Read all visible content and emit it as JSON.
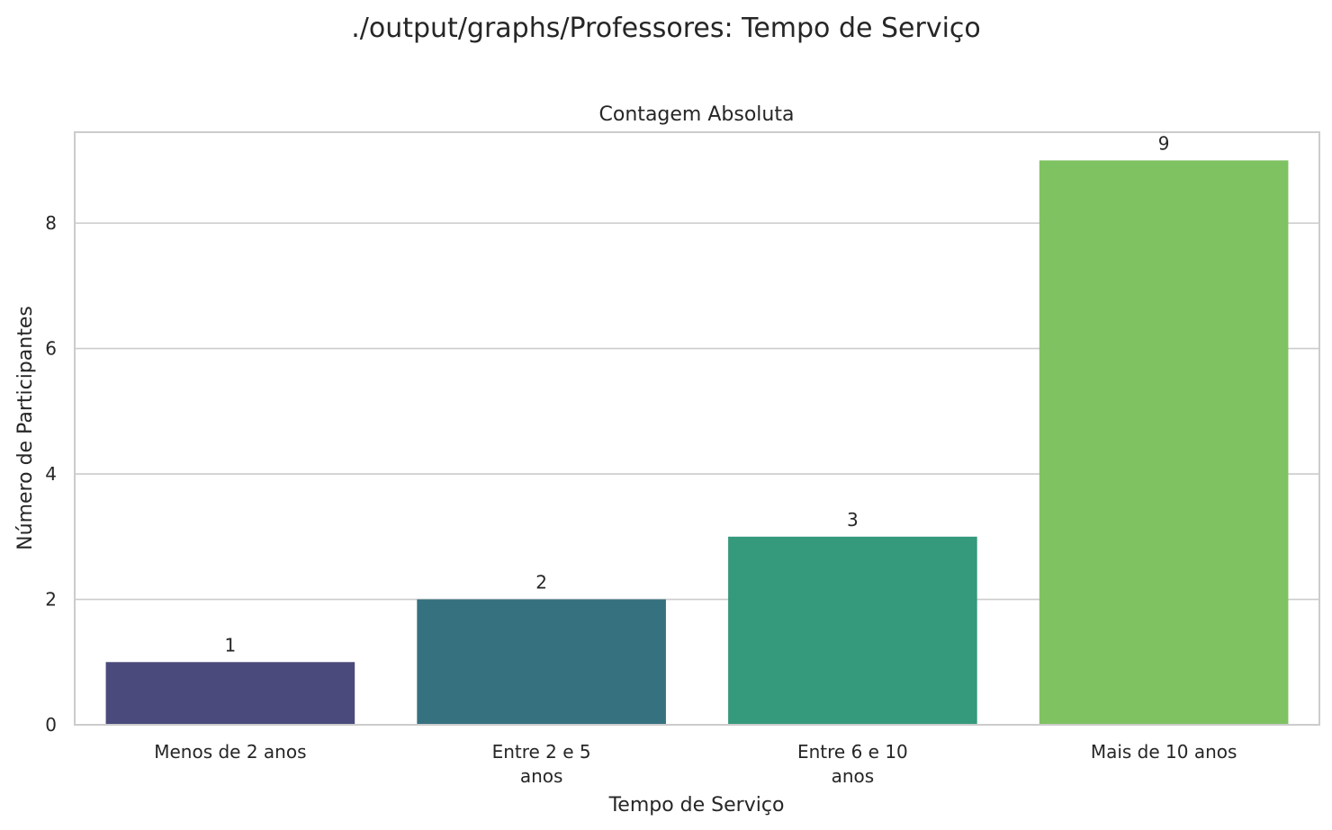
{
  "figure": {
    "suptitle": "./output/graphs/Professores: Tempo de Serviço"
  },
  "chart_data": {
    "type": "bar",
    "title": "Contagem Absoluta",
    "xlabel": "Tempo de Serviço",
    "ylabel": "Número de Participantes",
    "categories": [
      [
        "Menos de 2 anos"
      ],
      [
        "Entre 2 e 5",
        "anos"
      ],
      [
        "Entre 6 e 10",
        "anos"
      ],
      [
        "Mais de 10 anos"
      ]
    ],
    "values": [
      1,
      2,
      3,
      9
    ],
    "data_labels": [
      "1",
      "2",
      "3",
      "9"
    ],
    "colors": [
      "#4a4a7c",
      "#367180",
      "#35997b",
      "#7fc262"
    ],
    "ylim": [
      0,
      9.45
    ],
    "yticks": [
      0,
      2,
      4,
      6,
      8
    ],
    "grid": "horizontal",
    "legend": "none"
  }
}
